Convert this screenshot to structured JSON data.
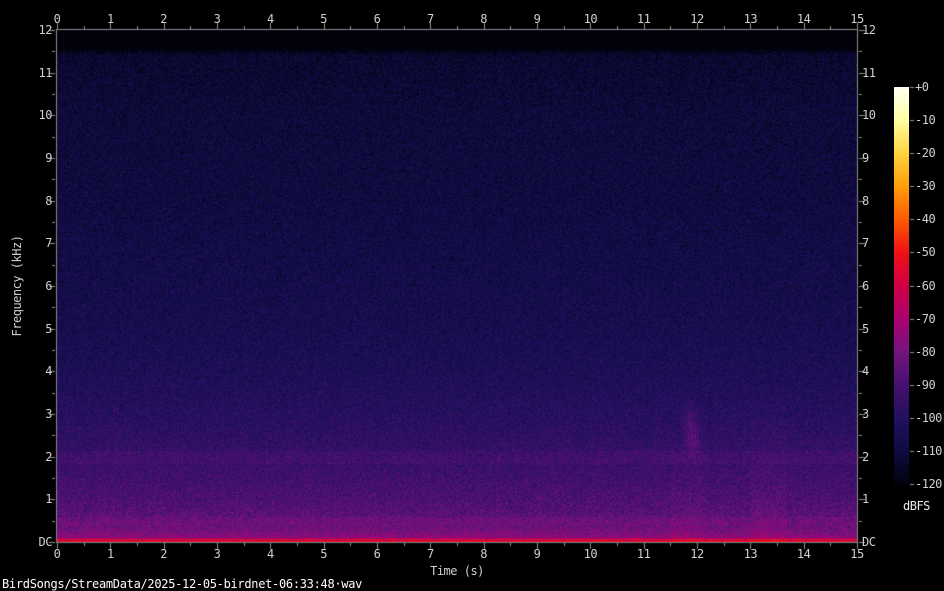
{
  "status_bar": {
    "file_path": "BirdSongs/StreamData/2025-12-05-birdnet-06:33:48·wav"
  },
  "colors": {
    "background": "#000000",
    "axis": "#8f8f8f",
    "tick_label": "#cfcfcf",
    "status_text": "#ffffff"
  },
  "chart_data": {
    "type": "heatmap",
    "subtype": "audio-spectrogram",
    "title": "",
    "xlabel": "Time (s)",
    "ylabel": "Frequency (kHz)",
    "x_range_s": [
      0,
      15
    ],
    "y_range_khz": [
      0,
      12
    ],
    "x_ticks": [
      "0",
      "1",
      "2",
      "3",
      "4",
      "5",
      "6",
      "7",
      "8",
      "9",
      "10",
      "11",
      "12",
      "13",
      "14",
      "15"
    ],
    "x_minor_tick_step_s": 0.5,
    "y_ticks": [
      "12",
      "11",
      "10",
      "9",
      "8",
      "7",
      "6",
      "5",
      "4",
      "3",
      "2",
      "1",
      "DC"
    ],
    "y_minor_tick_step_khz": 0.5,
    "axes_with_ticks": [
      "top",
      "bottom",
      "left",
      "right"
    ],
    "grid": false,
    "colorbar": {
      "label": "dBFS",
      "range_db": [
        0,
        -120
      ],
      "ticks": [
        "+0",
        "-10",
        "-20",
        "-30",
        "-40",
        "-50",
        "-60",
        "-70",
        "-80",
        "-90",
        "-100",
        "-110",
        "-120"
      ],
      "stops": [
        {
          "db": 0,
          "color": "#fffff4"
        },
        {
          "db": -10,
          "color": "#ffffa2"
        },
        {
          "db": -20,
          "color": "#ffd33e"
        },
        {
          "db": -30,
          "color": "#ff9d0c"
        },
        {
          "db": -40,
          "color": "#ff5a02"
        },
        {
          "db": -50,
          "color": "#ef1014"
        },
        {
          "db": -60,
          "color": "#d00045"
        },
        {
          "db": -70,
          "color": "#aa016d"
        },
        {
          "db": -80,
          "color": "#751480"
        },
        {
          "db": -90,
          "color": "#46106e"
        },
        {
          "db": -100,
          "color": "#221060"
        },
        {
          "db": -110,
          "color": "#0e0c40"
        },
        {
          "db": -120,
          "color": "#020210"
        }
      ]
    },
    "background_noise_profile_dbfs_vs_khz": [
      {
        "khz": 12.0,
        "dbfs": -122
      },
      {
        "khz": 11.58,
        "dbfs": -122
      },
      {
        "khz": 11.42,
        "dbfs": -113
      },
      {
        "khz": 10.0,
        "dbfs": -110.5
      },
      {
        "khz": 8.0,
        "dbfs": -109
      },
      {
        "khz": 6.0,
        "dbfs": -106.5
      },
      {
        "khz": 5.0,
        "dbfs": -105
      },
      {
        "khz": 4.0,
        "dbfs": -102.5
      },
      {
        "khz": 3.2,
        "dbfs": -99.5
      },
      {
        "khz": 2.6,
        "dbfs": -97
      },
      {
        "khz": 2.0,
        "dbfs": -94
      },
      {
        "khz": 1.5,
        "dbfs": -91.5
      },
      {
        "khz": 1.0,
        "dbfs": -88.5
      },
      {
        "khz": 0.7,
        "dbfs": -86
      },
      {
        "khz": 0.45,
        "dbfs": -83
      },
      {
        "khz": 0.25,
        "dbfs": -79.5
      },
      {
        "khz": 0.12,
        "dbfs": -75
      },
      {
        "khz": 0.06,
        "dbfs": -67
      },
      {
        "khz": 0.02,
        "dbfs": -58
      },
      {
        "khz": 0.0,
        "dbfs": -55
      }
    ],
    "noise_speckle_db": 13,
    "features": [
      {
        "type": "silent-band",
        "khz": [
          11.6,
          12.0
        ],
        "dbfs": -120
      },
      {
        "type": "dc-line",
        "khz": [
          0,
          0.08
        ],
        "dbfs": -56
      },
      {
        "type": "horizontal-band",
        "khz": [
          1.85,
          2.15
        ],
        "boost_db": 2.5
      },
      {
        "type": "horizontal-band",
        "khz": [
          0.4,
          0.6
        ],
        "boost_db": 2
      },
      {
        "type": "vertical-smear",
        "t_s": [
          11.5,
          12.1
        ],
        "khz": [
          0,
          3.3
        ],
        "boost_db": 2.5
      },
      {
        "type": "vertical-smear",
        "t_s": [
          13.0,
          13.65
        ],
        "khz": [
          0,
          4.0
        ],
        "boost_db": 3
      },
      {
        "type": "faint-chirp",
        "t_s": 11.9,
        "khz": 2.45,
        "boost_db": 9
      },
      {
        "type": "faint-chirp",
        "t_s": 11.85,
        "khz": 2.9,
        "boost_db": 6
      }
    ]
  }
}
